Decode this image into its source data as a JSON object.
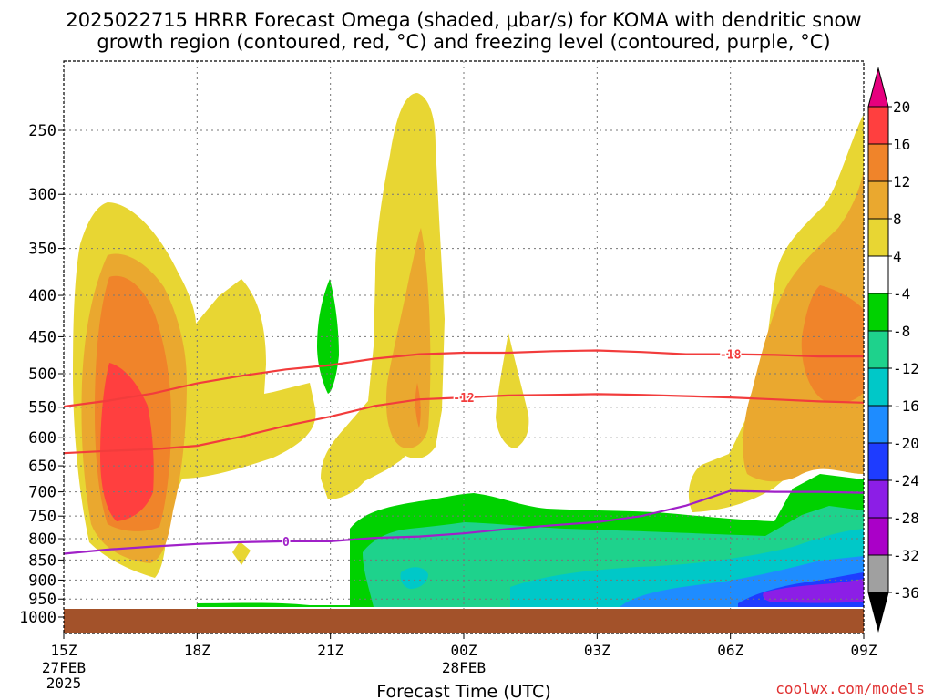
{
  "chart_data": {
    "type": "heatmap",
    "title_line1": "2025022715 HRRR Forecast Omega (shaded, μbar/s) for KOMA with dendritic snow",
    "title_line2": "growth region (contoured, red, °C) and freezing level (contoured, purple, °C)",
    "xlabel": "Forecast Time (UTC)",
    "ylabel": "",
    "credit": "coolwx.com/models",
    "x_tick_labels": [
      "15Z",
      "18Z",
      "21Z",
      "00Z",
      "03Z",
      "06Z",
      "09Z"
    ],
    "x_hours": [
      0,
      3,
      6,
      9,
      12,
      15,
      18
    ],
    "x_date_labels": [
      {
        "hour": 0,
        "line1": "27FEB",
        "line2": "2025"
      },
      {
        "hour": 9,
        "line1": "28FEB",
        "line2": ""
      }
    ],
    "y_ticks": [
      250,
      300,
      350,
      400,
      450,
      500,
      550,
      600,
      650,
      700,
      750,
      800,
      850,
      900,
      950,
      1000
    ],
    "y_units": "hPa",
    "xlim": [
      0,
      18
    ],
    "ylim": [
      1000,
      200
    ],
    "log_pressure_axis": true,
    "grid": true,
    "ground_level_hpa": 975,
    "colorbar": {
      "labels": [
        "20",
        "16",
        "12",
        "8",
        "4",
        "-4",
        "-8",
        "-12",
        "-16",
        "-20",
        "-24",
        "-28",
        "-32",
        "-36"
      ],
      "bins": [
        {
          "from": 16,
          "to": 20,
          "color": "#ff3f3f"
        },
        {
          "from": 12,
          "to": 16,
          "color": "#f0842a"
        },
        {
          "from": 8,
          "to": 12,
          "color": "#eaa82f"
        },
        {
          "from": 4,
          "to": 8,
          "color": "#e8d633"
        },
        {
          "from": -4,
          "to": 4,
          "color": "#ffffff"
        },
        {
          "from": -8,
          "to": -4,
          "color": "#00d200"
        },
        {
          "from": -12,
          "to": -8,
          "color": "#1ed28c"
        },
        {
          "from": -16,
          "to": -12,
          "color": "#00c8c8"
        },
        {
          "from": -20,
          "to": -16,
          "color": "#1e8cff"
        },
        {
          "from": -24,
          "to": -20,
          "color": "#1e3cff"
        },
        {
          "from": -28,
          "to": -24,
          "color": "#8c1ee6"
        },
        {
          "from": -32,
          "to": -28,
          "color": "#aa00c8"
        },
        {
          "from": -36,
          "to": -32,
          "color": "#a0a0a0"
        }
      ],
      "top_arrow_color": "#e6007e",
      "bottom_arrow_color": "#000000"
    },
    "contours": [
      {
        "name": "-18",
        "color": "#f23c3c",
        "label_hour": 15,
        "points": [
          [
            0,
            549
          ],
          [
            1,
            540
          ],
          [
            2,
            529
          ],
          [
            3,
            514
          ],
          [
            4,
            503
          ],
          [
            5,
            494
          ],
          [
            6,
            488
          ],
          [
            7,
            479
          ],
          [
            8,
            473
          ],
          [
            9,
            471
          ],
          [
            10,
            471
          ],
          [
            11,
            469
          ],
          [
            12,
            468
          ],
          [
            13,
            470
          ],
          [
            14,
            473
          ],
          [
            15,
            473
          ],
          [
            16,
            474
          ],
          [
            17,
            476
          ],
          [
            18,
            476
          ]
        ]
      },
      {
        "name": "-12",
        "color": "#f23c3c",
        "label_hour": 9,
        "points": [
          [
            0,
            627
          ],
          [
            1,
            623
          ],
          [
            2,
            620
          ],
          [
            3,
            614
          ],
          [
            4,
            598
          ],
          [
            5,
            580
          ],
          [
            6,
            565
          ],
          [
            7,
            548
          ],
          [
            8,
            538
          ],
          [
            9,
            535
          ],
          [
            10,
            532
          ],
          [
            11,
            531
          ],
          [
            12,
            530
          ],
          [
            13,
            531
          ],
          [
            14,
            533
          ],
          [
            15,
            535
          ],
          [
            16,
            538
          ],
          [
            17,
            541
          ],
          [
            18,
            543
          ]
        ]
      },
      {
        "name": "0",
        "color": "#a020c8",
        "label_hour": 5,
        "points": [
          [
            0,
            835
          ],
          [
            1,
            825
          ],
          [
            2,
            818
          ],
          [
            3,
            812
          ],
          [
            4,
            808
          ],
          [
            5,
            806
          ],
          [
            6,
            806
          ],
          [
            7,
            798
          ],
          [
            8,
            795
          ],
          [
            9,
            788
          ],
          [
            10,
            778
          ],
          [
            11,
            770
          ],
          [
            12,
            763
          ],
          [
            13,
            750
          ],
          [
            14,
            728
          ],
          [
            15,
            698
          ],
          [
            16,
            700
          ],
          [
            17,
            700
          ],
          [
            18,
            702
          ]
        ]
      }
    ]
  }
}
